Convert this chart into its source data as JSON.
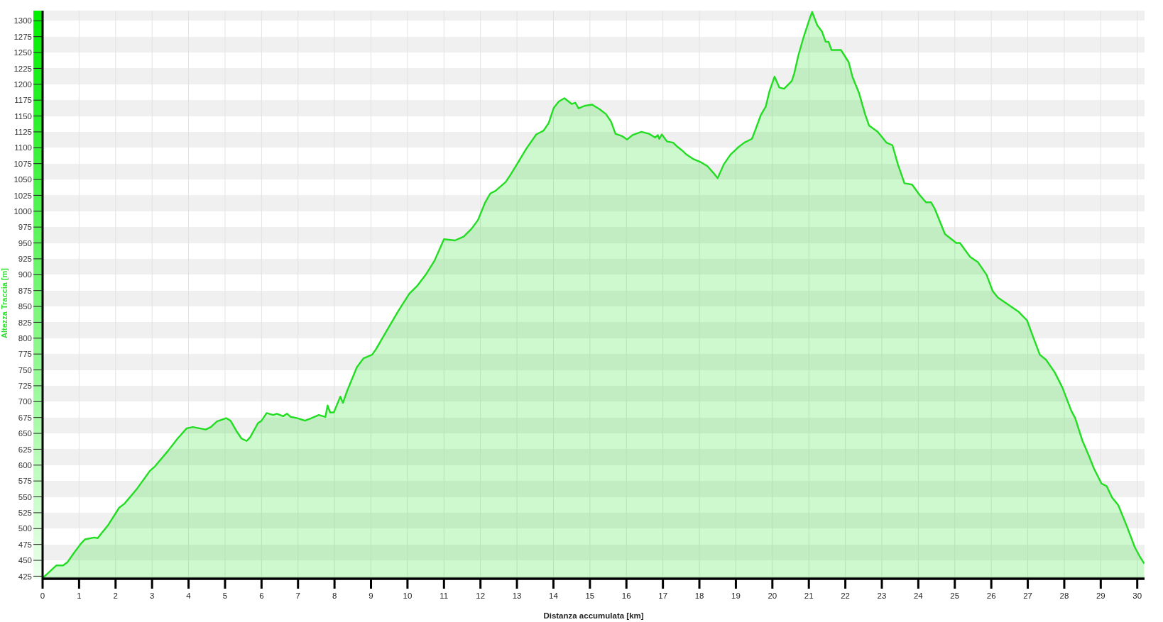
{
  "chart_data": {
    "type": "area",
    "xlabel": "Distanza accumulata [km]",
    "ylabel": "Altezza Traccia [m]",
    "color": "#22dd22",
    "x": [
      0,
      0.38,
      0.56,
      0.68,
      0.85,
      1.06,
      1.16,
      1.41,
      1.51,
      1.62,
      1.79,
      2.1,
      2.24,
      2.59,
      2.94,
      3.08,
      3.43,
      3.7,
      3.95,
      4.12,
      4.47,
      4.61,
      4.78,
      5.03,
      5.15,
      5.31,
      5.45,
      5.59,
      5.69,
      5.9,
      6.0,
      6.14,
      6.32,
      6.42,
      6.59,
      6.7,
      6.8,
      6.98,
      7.19,
      7.33,
      7.57,
      7.75,
      7.81,
      7.88,
      7.98,
      8.16,
      8.23,
      8.34,
      8.61,
      8.79,
      9.03,
      9.13,
      9.74,
      10.05,
      10.26,
      10.5,
      10.74,
      11.0,
      11.3,
      11.54,
      11.75,
      11.93,
      12.13,
      12.27,
      12.41,
      12.69,
      12.83,
      13.0,
      13.25,
      13.53,
      13.73,
      13.87,
      14.01,
      14.15,
      14.3,
      14.5,
      14.6,
      14.69,
      14.85,
      15.06,
      15.26,
      15.44,
      15.58,
      15.7,
      15.89,
      16.02,
      16.17,
      16.41,
      16.62,
      16.79,
      16.86,
      16.9,
      16.97,
      17.11,
      17.28,
      17.39,
      17.56,
      17.63,
      17.84,
      18.05,
      18.22,
      18.39,
      18.5,
      18.67,
      18.85,
      19.05,
      19.23,
      19.44,
      19.54,
      19.68,
      19.82,
      19.92,
      20.06,
      20.19,
      20.32,
      20.53,
      20.6,
      20.71,
      20.85,
      21.02,
      21.09,
      21.23,
      21.36,
      21.46,
      21.54,
      21.62,
      21.88,
      22.09,
      22.2,
      22.37,
      22.54,
      22.65,
      22.89,
      23.13,
      23.29,
      23.44,
      23.62,
      23.83,
      24.03,
      24.21,
      24.35,
      24.45,
      24.73,
      25.04,
      25.14,
      25.42,
      25.63,
      25.87,
      26.04,
      26.18,
      26.74,
      26.81,
      26.98,
      27.12,
      27.33,
      27.5,
      27.74,
      27.95,
      28.19,
      28.3,
      28.5,
      28.68,
      28.81,
      29.02,
      29.16,
      29.31,
      29.48,
      29.72,
      29.93,
      30.06,
      30.19
    ],
    "values": [
      422,
      442,
      442,
      447,
      461,
      477,
      483,
      486,
      485,
      493,
      505,
      533,
      539,
      563,
      591,
      598,
      622,
      642,
      658,
      660,
      656,
      660,
      669,
      674,
      670,
      654,
      642,
      638,
      644,
      666,
      670,
      682,
      679,
      681,
      677,
      681,
      676,
      674,
      670,
      673,
      679,
      676,
      694,
      683,
      683,
      708,
      698,
      716,
      754,
      768,
      774,
      782,
      842,
      870,
      882,
      900,
      922,
      956,
      954,
      960,
      972,
      986,
      1014,
      1028,
      1032,
      1046,
      1058,
      1074,
      1098,
      1121,
      1127,
      1139,
      1163,
      1173,
      1178,
      1169,
      1171,
      1162,
      1166,
      1168,
      1161,
      1153,
      1141,
      1122,
      1118,
      1113,
      1120,
      1125,
      1122,
      1116,
      1120,
      1114,
      1121,
      1110,
      1108,
      1102,
      1094,
      1090,
      1082,
      1077,
      1071,
      1060,
      1052,
      1074,
      1089,
      1100,
      1108,
      1114,
      1129,
      1151,
      1165,
      1189,
      1212,
      1195,
      1193,
      1205,
      1217,
      1245,
      1273,
      1303,
      1314,
      1293,
      1283,
      1267,
      1267,
      1254,
      1254,
      1235,
      1211,
      1187,
      1153,
      1135,
      1125,
      1108,
      1104,
      1074,
      1044,
      1042,
      1026,
      1014,
      1014,
      1004,
      964,
      950,
      950,
      928,
      920,
      900,
      874,
      864,
      842,
      838,
      828,
      806,
      774,
      766,
      746,
      722,
      686,
      674,
      638,
      614,
      595,
      571,
      567,
      549,
      537,
      503,
      471,
      457,
      445
    ],
    "xlim": [
      0,
      30.2
    ],
    "ylim": [
      421,
      1316
    ],
    "xticks": [
      0,
      1,
      2,
      3,
      4,
      5,
      6,
      7,
      8,
      9,
      10,
      11,
      12,
      13,
      14,
      15,
      16,
      17,
      18,
      19,
      20,
      21,
      22,
      23,
      24,
      25,
      26,
      27,
      28,
      29,
      30
    ],
    "yticks": [
      425,
      450,
      475,
      500,
      525,
      550,
      575,
      600,
      625,
      650,
      675,
      700,
      725,
      750,
      775,
      800,
      825,
      850,
      875,
      900,
      925,
      950,
      975,
      1000,
      1025,
      1050,
      1075,
      1100,
      1125,
      1150,
      1175,
      1200,
      1225,
      1250,
      1275,
      1300
    ],
    "grid": true
  }
}
